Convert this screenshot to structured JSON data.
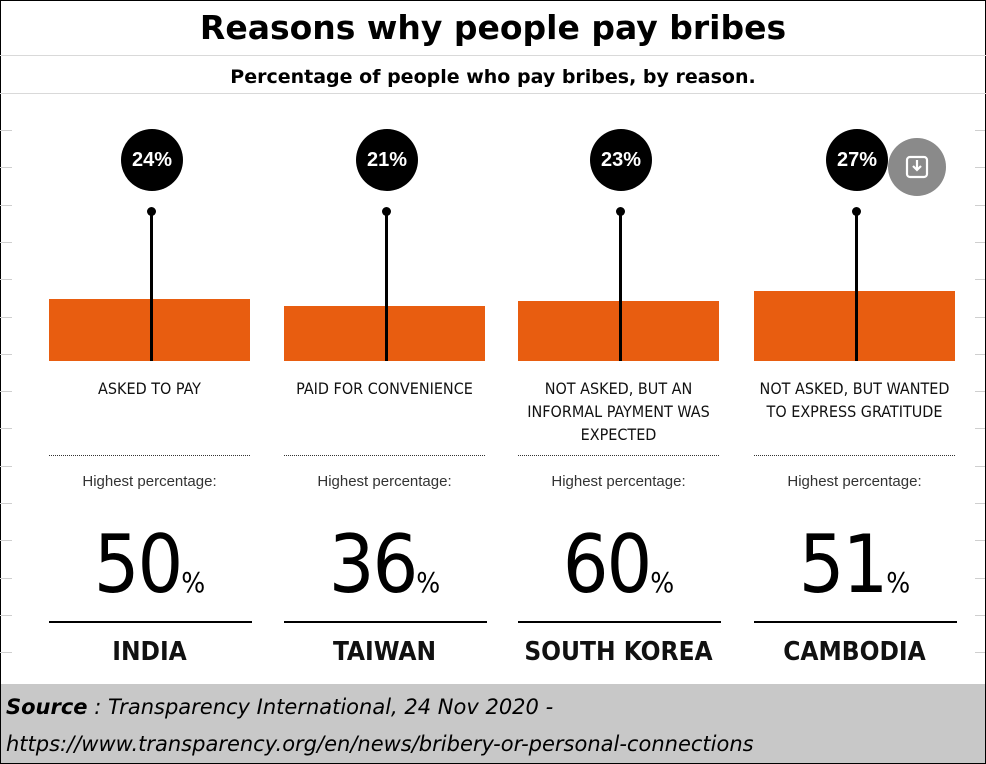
{
  "header": {
    "title": "Reasons why people pay bribes",
    "subtitle": "Percentage of people who pay bribes, by reason."
  },
  "chart_data": {
    "type": "bar",
    "title": "Reasons why people pay bribes",
    "subtitle": "Percentage of people who pay bribes, by reason.",
    "categories": [
      "ASKED TO PAY",
      "PAID FOR CONVENIENCE",
      "NOT ASKED, BUT AN INFORMAL PAYMENT WAS EXPECTED",
      "NOT ASKED, BUT WANTED TO EXPRESS GRATITUDE"
    ],
    "values": [
      24,
      21,
      23,
      27
    ],
    "value_labels": [
      "24%",
      "21%",
      "23%",
      "27%"
    ],
    "highest_label": "Highest percentage:",
    "highest": [
      {
        "country": "INDIA",
        "value": 50
      },
      {
        "country": "TAIWAN",
        "value": 36
      },
      {
        "country": "SOUTH KOREA",
        "value": 60
      },
      {
        "country": "CAMBODIA",
        "value": 51
      }
    ],
    "percent_symbol": "%",
    "colors": {
      "bar": "#e85d10",
      "bubble": "#000000"
    }
  },
  "columns": [
    {
      "percent": "24%",
      "reason": "ASKED TO PAY",
      "highest_label": "Highest percentage:",
      "highest_value": "50",
      "percent_symbol": "%",
      "country": "INDIA"
    },
    {
      "percent": "21%",
      "reason": "PAID FOR CONVENIENCE",
      "highest_label": "Highest percentage:",
      "highest_value": "36",
      "percent_symbol": "%",
      "country": "TAIWAN"
    },
    {
      "percent": "23%",
      "reason": "NOT ASKED, BUT AN INFORMAL PAYMENT WAS EXPECTED",
      "highest_label": "Highest percentage:",
      "highest_value": "60",
      "percent_symbol": "%",
      "country": "SOUTH KOREA"
    },
    {
      "percent": "27%",
      "reason": "NOT ASKED, BUT WANTED TO EXPRESS GRATITUDE",
      "highest_label": "Highest percentage:",
      "highest_value": "51",
      "percent_symbol": "%",
      "country": "CAMBODIA"
    }
  ],
  "download_icon": "download-icon",
  "source": {
    "label": "Source",
    "text": " : Transparency International, 24 Nov 2020 -",
    "url": "https://www.transparency.org/en/news/bribery-or-personal-connections"
  }
}
